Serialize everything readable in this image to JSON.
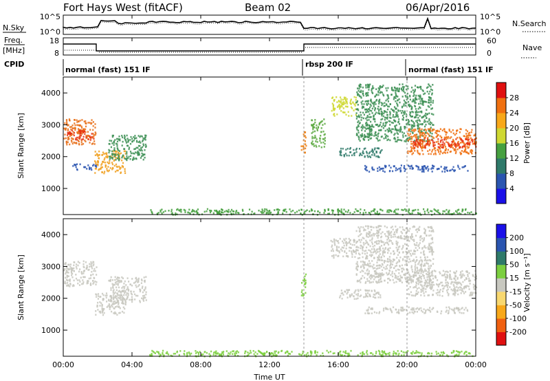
{
  "header": {
    "station": "Fort Hays West (fitACF)",
    "beam": "Beam 02",
    "date": "06/Apr/2016"
  },
  "params": {
    "nsky_label": "N.Sky",
    "nsearch_label": "N.Search",
    "nsky_ticks": [
      "10^5",
      "10^0"
    ],
    "nsearch_ticks": [
      "10^5",
      "10^0"
    ],
    "freq_label_1": "Freq.",
    "freq_label_2": "[MHz]",
    "freq_ticks": [
      "18",
      "8"
    ],
    "nave_label": "Nave",
    "nave_ticks": [
      "60",
      "0"
    ],
    "cpid_label": "CPID",
    "cpid_segments": [
      "normal (fast) 151 IF",
      "rbsp 200 IF",
      "normal (fast) 151 IF"
    ]
  },
  "chart_data": [
    {
      "type": "heatmap",
      "name": "power",
      "ylabel": "Slant Range [km]",
      "yticks": [
        "1000",
        "2000",
        "3000",
        "4000"
      ],
      "ylim": [
        180,
        4500
      ],
      "xlim": [
        0,
        24
      ],
      "colorbar_label": "Power [dB]",
      "colorbar_ticks": [
        "4",
        "8",
        "12",
        "16",
        "20",
        "24",
        "28"
      ],
      "colorbar_colors": [
        "#1a10e8",
        "#2a55b0",
        "#2f7a6a",
        "#46a040",
        "#cfd832",
        "#f8a81a",
        "#f07010",
        "#e01010"
      ],
      "bands": [
        {
          "t0": 0.0,
          "t1": 1.9,
          "r0": 2400,
          "r1": 3200,
          "color": "#e8701a"
        },
        {
          "t0": 0.2,
          "t1": 1.8,
          "r0": 2550,
          "r1": 2850,
          "color": "#e83010"
        },
        {
          "t0": 1.8,
          "t1": 3.6,
          "r0": 1500,
          "r1": 2200,
          "color": "#f0a020"
        },
        {
          "t0": 2.6,
          "t1": 4.8,
          "r0": 1900,
          "r1": 2700,
          "color": "#3d8f55"
        },
        {
          "t0": 0.5,
          "t1": 1.9,
          "r0": 1600,
          "r1": 1800,
          "color": "#2a55b0"
        },
        {
          "t0": 13.8,
          "t1": 14.1,
          "r0": 2100,
          "r1": 2800,
          "color": "#f08010"
        },
        {
          "t0": 14.4,
          "t1": 15.2,
          "r0": 2300,
          "r1": 3200,
          "color": "#5aa840"
        },
        {
          "t0": 15.5,
          "t1": 17.0,
          "r0": 3300,
          "r1": 3900,
          "color": "#cfd832"
        },
        {
          "t0": 16.0,
          "t1": 18.5,
          "r0": 2000,
          "r1": 2300,
          "color": "#2f7a6a"
        },
        {
          "t0": 17.0,
          "t1": 21.5,
          "r0": 2500,
          "r1": 4300,
          "color": "#3d8f55"
        },
        {
          "t0": 20.0,
          "t1": 24.0,
          "r0": 2100,
          "r1": 2900,
          "color": "#f07010"
        },
        {
          "t0": 20.3,
          "t1": 24.0,
          "r0": 2300,
          "r1": 2600,
          "color": "#e83010"
        },
        {
          "t0": 17.5,
          "t1": 23.5,
          "r0": 1550,
          "r1": 1750,
          "color": "#2a55b0"
        },
        {
          "t0": 5.0,
          "t1": 24.0,
          "r0": 200,
          "r1": 380,
          "color": "#46a040"
        }
      ]
    },
    {
      "type": "heatmap",
      "name": "velocity",
      "ylabel": "Slant Range [km]",
      "yticks": [
        "1000",
        "2000",
        "3000",
        "4000"
      ],
      "ylim": [
        180,
        4500
      ],
      "xlim": [
        0,
        24
      ],
      "xticks": [
        "00:00",
        "04:00",
        "08:00",
        "12:00",
        "16:00",
        "20:00",
        "00:00"
      ],
      "xlabel": "Time UT",
      "colorbar_label": "Velocity [m s⁻¹]",
      "colorbar_ticks": [
        "-200",
        "-100",
        "-50",
        "-15",
        "15",
        "50",
        "100",
        "200"
      ],
      "colorbar_colors": [
        "#e01010",
        "#f06010",
        "#f8a81a",
        "#f8d870",
        "#c8c8c0",
        "#7ccf40",
        "#2f7a6a",
        "#2a55b0",
        "#1a10e8"
      ],
      "bands": [
        {
          "t0": 0.0,
          "t1": 1.9,
          "r0": 2400,
          "r1": 3200,
          "color": "#c8c8c0"
        },
        {
          "t0": 1.8,
          "t1": 3.6,
          "r0": 1500,
          "r1": 2200,
          "color": "#c8c8c0"
        },
        {
          "t0": 2.6,
          "t1": 4.8,
          "r0": 1900,
          "r1": 2700,
          "color": "#c8c8c0"
        },
        {
          "t0": 13.8,
          "t1": 14.1,
          "r0": 2100,
          "r1": 2800,
          "color": "#7ccf40"
        },
        {
          "t0": 15.5,
          "t1": 17.0,
          "r0": 3300,
          "r1": 3900,
          "color": "#c8c8c0"
        },
        {
          "t0": 16.0,
          "t1": 18.5,
          "r0": 2000,
          "r1": 2300,
          "color": "#c8c8c0"
        },
        {
          "t0": 17.0,
          "t1": 21.5,
          "r0": 2500,
          "r1": 4300,
          "color": "#c8c8c0"
        },
        {
          "t0": 20.0,
          "t1": 24.0,
          "r0": 2100,
          "r1": 2900,
          "color": "#c8c8c0"
        },
        {
          "t0": 17.5,
          "t1": 23.5,
          "r0": 1550,
          "r1": 1750,
          "color": "#c8c8c0"
        },
        {
          "t0": 5.0,
          "t1": 24.0,
          "r0": 200,
          "r1": 380,
          "color": "#7ccf40"
        }
      ]
    }
  ]
}
